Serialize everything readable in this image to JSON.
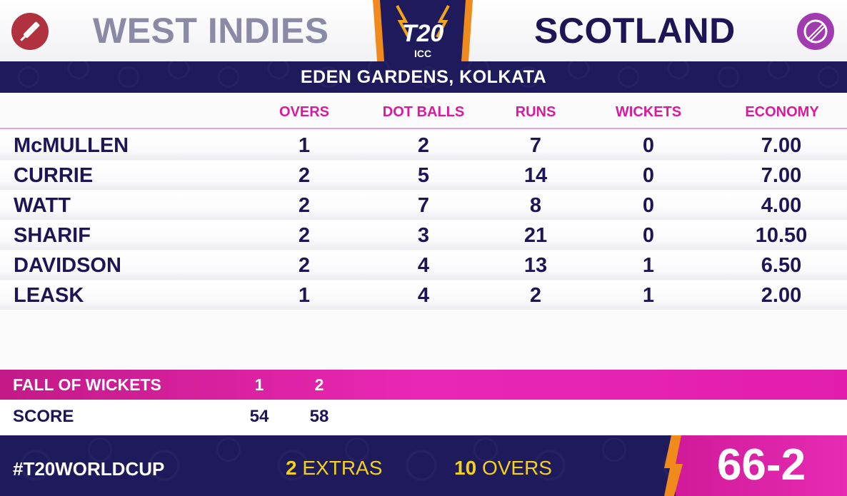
{
  "header": {
    "team_batting": "WEST INDIES",
    "team_bowling": "SCOTLAND",
    "logo_text_main": "T20",
    "logo_text_sub": "ICC",
    "venue": "EDEN GARDENS, KOLKATA"
  },
  "table": {
    "columns": [
      "OVERS",
      "DOT BALLS",
      "RUNS",
      "WICKETS",
      "ECONOMY"
    ],
    "rows": [
      {
        "name": "McMULLEN",
        "overs": "1",
        "dots": "2",
        "runs": "7",
        "wickets": "0",
        "economy": "7.00"
      },
      {
        "name": "CURRIE",
        "overs": "2",
        "dots": "5",
        "runs": "14",
        "wickets": "0",
        "economy": "7.00"
      },
      {
        "name": "WATT",
        "overs": "2",
        "dots": "7",
        "runs": "8",
        "wickets": "0",
        "economy": "4.00"
      },
      {
        "name": "SHARIF",
        "overs": "2",
        "dots": "3",
        "runs": "21",
        "wickets": "0",
        "economy": "10.50"
      },
      {
        "name": "DAVIDSON",
        "overs": "2",
        "dots": "4",
        "runs": "13",
        "wickets": "1",
        "economy": "6.50"
      },
      {
        "name": "LEASK",
        "overs": "1",
        "dots": "4",
        "runs": "2",
        "wickets": "1",
        "economy": "2.00"
      }
    ]
  },
  "fall_of_wickets": {
    "label": "FALL OF WICKETS",
    "wickets": [
      "1",
      "2"
    ],
    "score_label": "SCORE",
    "scores": [
      "54",
      "58"
    ]
  },
  "footer": {
    "hashtag": "#T20WORLDCUP",
    "extras_value": "2",
    "extras_label": "EXTRAS",
    "overs_value": "10",
    "overs_label": "OVERS",
    "total": "66-2"
  },
  "colors": {
    "navy": "#1e1556",
    "magenta": "#e21dab",
    "yellow": "#f2d21c",
    "bat_icon_bg": "#b1323f",
    "ball_icon_bg": "#a23bb0"
  }
}
